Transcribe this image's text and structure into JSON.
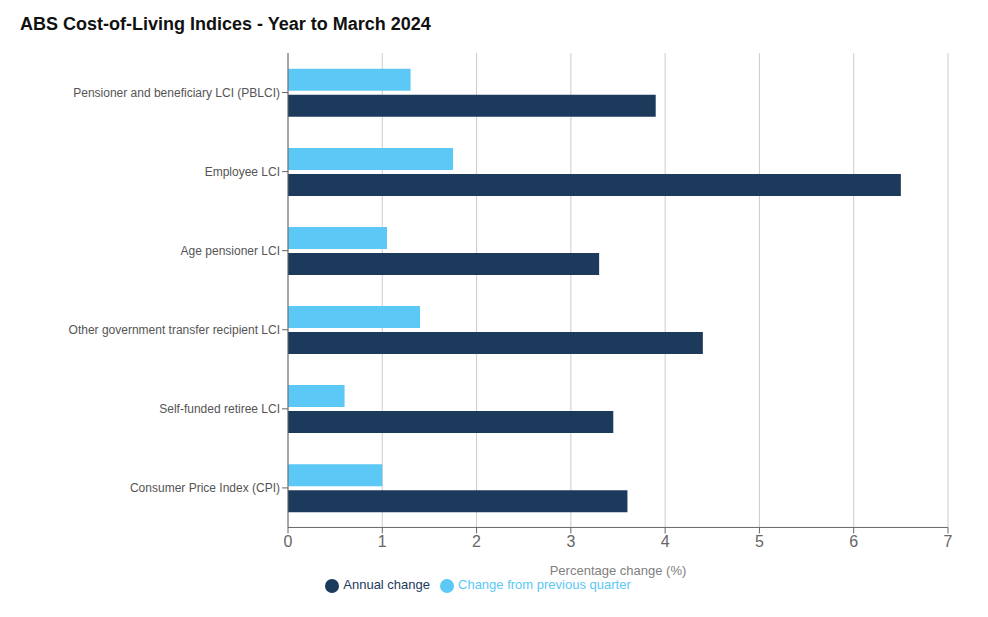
{
  "chart_data": {
    "type": "bar",
    "orientation": "horizontal",
    "title": "ABS Cost-of-Living Indices - Year to March 2024",
    "categories": [
      "Consumer Price Index (CPI)",
      "Self-funded retiree LCI",
      "Other government transfer recipient LCI",
      "Age pensioner LCI",
      "Employee LCI",
      "Pensioner and beneficiary LCI (PBLCI)"
    ],
    "series": [
      {
        "name": "Change from previous quarter",
        "color": "#5BC8F5",
        "values": [
          1.0,
          0.6,
          1.4,
          1.05,
          1.75,
          1.3
        ]
      },
      {
        "name": "Annual change",
        "color": "#1B3A5C",
        "values": [
          3.6,
          3.45,
          4.4,
          3.3,
          6.5,
          3.9
        ]
      }
    ],
    "xlabel": "Percentage change (%)",
    "xlim": [
      0,
      7
    ],
    "xticks": [
      0,
      1,
      2,
      3,
      4,
      5,
      6,
      7
    ],
    "grid": true,
    "legend": "bottom"
  }
}
